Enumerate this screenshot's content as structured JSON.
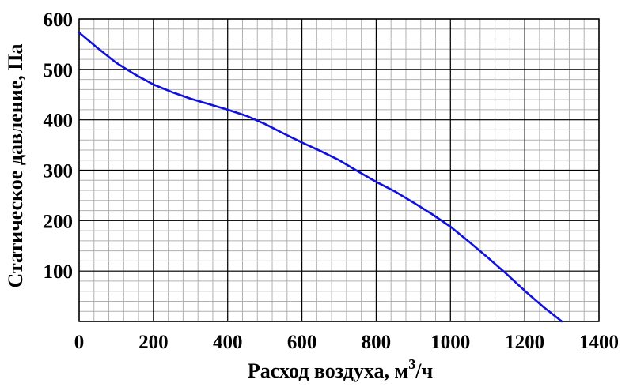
{
  "chart_data": {
    "type": "line",
    "title": "",
    "xlabel": "Расход воздуха, м",
    "xlabel_sup": "3",
    "xlabel_suffix": "/ч",
    "ylabel": "Статическое давление, Па",
    "xlim": [
      0,
      1400
    ],
    "ylim": [
      0,
      600
    ],
    "x_ticks": [
      "0",
      "200",
      "400",
      "600",
      "800",
      "1000",
      "1200",
      "1400"
    ],
    "y_ticks": [
      "100",
      "200",
      "300",
      "400",
      "500",
      "600"
    ],
    "grid": true,
    "series": [
      {
        "color": "#1010e0",
        "x": [
          0,
          50,
          100,
          150,
          200,
          250,
          300,
          350,
          400,
          450,
          500,
          550,
          600,
          650,
          700,
          750,
          800,
          850,
          900,
          950,
          1000,
          1050,
          1100,
          1150,
          1200,
          1250,
          1300
        ],
        "y": [
          573,
          542,
          513,
          490,
          470,
          455,
          442,
          431,
          420,
          408,
          392,
          373,
          355,
          338,
          320,
          298,
          277,
          258,
          236,
          213,
          188,
          158,
          127,
          95,
          61,
          29,
          0
        ]
      }
    ]
  }
}
